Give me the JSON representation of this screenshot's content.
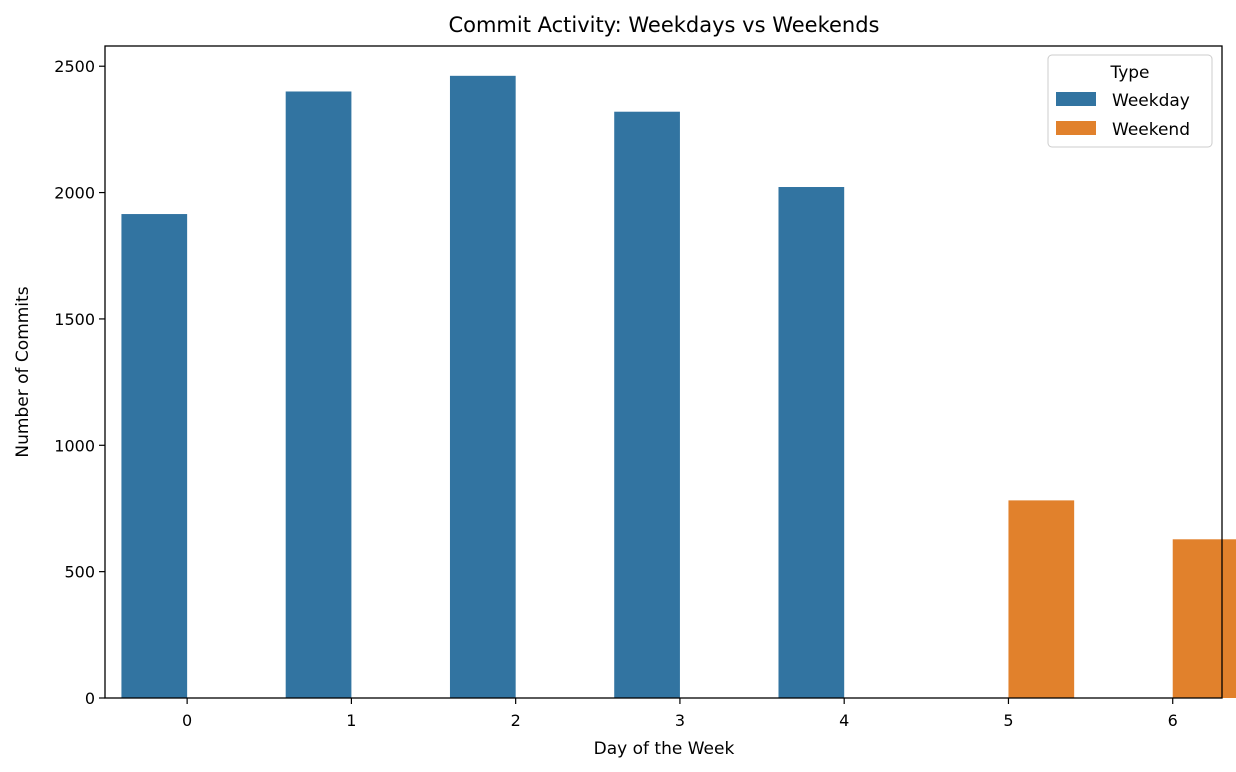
{
  "chart_data": {
    "type": "bar",
    "title": "Commit Activity: Weekdays vs Weekends",
    "xlabel": "Day of the Week",
    "ylabel": "Number of Commits",
    "categories": [
      "0",
      "1",
      "2",
      "3",
      "4",
      "5",
      "6"
    ],
    "yticks": [
      "0",
      "500",
      "1000",
      "1500",
      "2000",
      "2500"
    ],
    "ylim": [
      0,
      2580
    ],
    "grid": false,
    "legend": {
      "title": "Type",
      "position": "top-right",
      "entries": [
        {
          "label": "Weekday",
          "color": "#3274a1"
        },
        {
          "label": "Weekend",
          "color": "#e1812c"
        }
      ]
    },
    "series": [
      {
        "name": "Weekday",
        "color": "#3274a1",
        "values": [
          1915,
          2400,
          2462,
          2320,
          2022,
          null,
          null
        ]
      },
      {
        "name": "Weekend",
        "color": "#e1812c",
        "values": [
          null,
          null,
          null,
          null,
          null,
          782,
          628
        ]
      }
    ]
  }
}
